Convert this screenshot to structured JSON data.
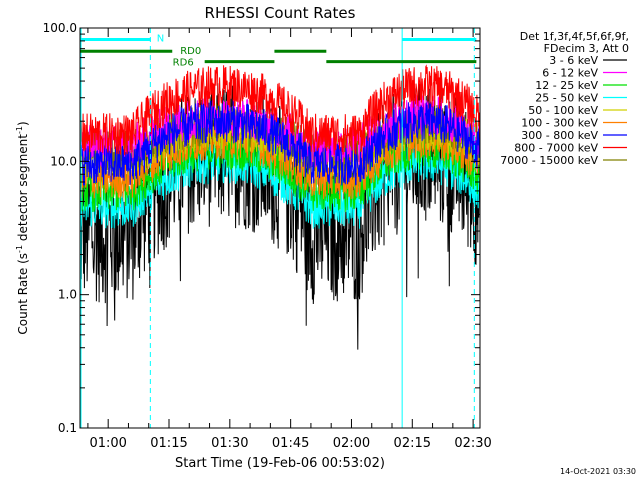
{
  "chart_data": {
    "type": "line",
    "title": "RHESSI Count Rates",
    "xlabel": "Start Time (19-Feb-06 00:53:02)",
    "ylabel_main": "Count Rate (s",
    "ylabel_sup1": "-1",
    "ylabel_mid": " detector segment",
    "ylabel_sup2": "-1",
    "ylabel_end": ")",
    "y_scale": "log",
    "ylim": [
      0.1,
      100.0
    ],
    "y_ticks": [
      {
        "value": 0.1,
        "label": "0.1"
      },
      {
        "value": 1.0,
        "label": "1.0"
      },
      {
        "value": 10.0,
        "label": "10.0"
      },
      {
        "value": 100.0,
        "label": "100.0"
      }
    ],
    "xlim_minutes": [
      53.05,
      151.7
    ],
    "x_ticks": [
      {
        "minute": 60,
        "label": "01:00"
      },
      {
        "minute": 75,
        "label": "01:15"
      },
      {
        "minute": 90,
        "label": "01:30"
      },
      {
        "minute": 105,
        "label": "01:45"
      },
      {
        "minute": 120,
        "label": "02:00"
      },
      {
        "minute": 135,
        "label": "02:15"
      },
      {
        "minute": 150,
        "label": "02:30"
      }
    ],
    "legend_header": [
      "Det 1f,3f,4f,5f,6f,9f,",
      "FDecim 3, Att 0"
    ],
    "legend_position": "outside-right",
    "series": [
      {
        "name": "3 - 6 keV",
        "color": "#000000",
        "base": 3.0,
        "ampl": 3.8
      },
      {
        "name": "6 - 12 keV",
        "color": "#ff00ff",
        "base": 13.0,
        "ampl": 1.7
      },
      {
        "name": "12 - 25 keV",
        "color": "#00e000",
        "base": 6.0,
        "ampl": 2.1
      },
      {
        "name": "25 - 50 keV",
        "color": "#00ffff",
        "base": 4.5,
        "ampl": 2.2
      },
      {
        "name": "50 - 100 keV",
        "color": "#d0d000",
        "base": 11.0,
        "ampl": 1.6
      },
      {
        "name": "100 - 300 keV",
        "color": "#ff8000",
        "base": 7.5,
        "ampl": 2.0
      },
      {
        "name": "300 - 800 keV",
        "color": "#0000ff",
        "base": 9.5,
        "ampl": 2.1
      },
      {
        "name": "800 - 7000 keV",
        "color": "#ff0000",
        "base": 16.0,
        "ampl": 2.3
      },
      {
        "name": "7000 - 15000 keV",
        "color": "#808000",
        "base": 12.0,
        "ampl": 1.6
      }
    ],
    "orbit_segments": [
      {
        "start": 66,
        "end": 110
      },
      {
        "start": 122,
        "end": 154
      }
    ],
    "flag_bars": [
      {
        "label": "N",
        "color": "#00ffff",
        "segments": [
          [
            53.05,
            70.5
          ],
          [
            132.5,
            150.8
          ]
        ],
        "level": 82.0
      },
      {
        "label": "RD0",
        "color": "#008000",
        "segments": [
          [
            53.05,
            75.8
          ],
          [
            101.0,
            113.8
          ]
        ],
        "level": 67.0
      },
      {
        "label": "RD6",
        "color": "#008000",
        "segments": [
          [
            83.8,
            101.0
          ],
          [
            113.8,
            150.8
          ]
        ],
        "level": 56.0
      }
    ],
    "vertical_markers": [
      {
        "minute": 53.3,
        "style": "solid",
        "color": "#00ffff"
      },
      {
        "minute": 70.4,
        "style": "dashed",
        "color": "#00ffff"
      },
      {
        "minute": 132.5,
        "style": "solid",
        "color": "#00ffff"
      },
      {
        "minute": 150.3,
        "style": "dashed",
        "color": "#00ffff"
      }
    ],
    "timestamp": "14-Oct-2021 03:30"
  }
}
